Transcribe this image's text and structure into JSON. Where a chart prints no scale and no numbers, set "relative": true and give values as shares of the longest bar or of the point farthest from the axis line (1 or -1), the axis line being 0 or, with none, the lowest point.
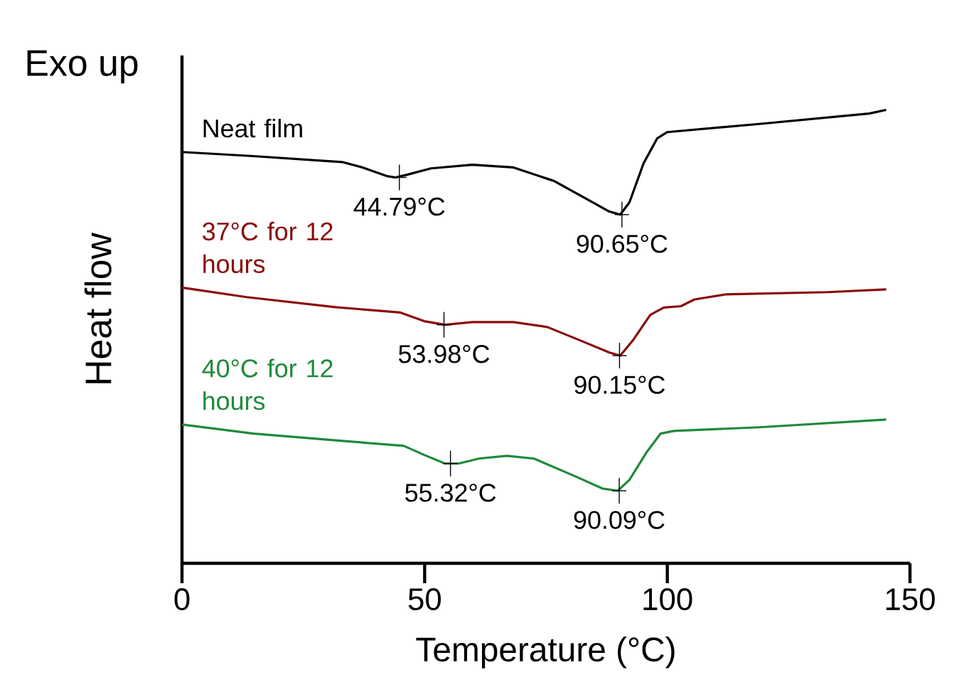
{
  "chart_data": {
    "type": "line",
    "relative": true,
    "xlabel": "Temperature (°C)",
    "ylabel": "Heat flow",
    "xlim": [
      0,
      150
    ],
    "xticks": [
      0,
      50,
      100,
      150
    ],
    "grid": false,
    "legend": false,
    "marker": "none",
    "line_style": "solid",
    "series": [
      {
        "name": "Neat film",
        "color": "#000000",
        "x": [
          0,
          14.7,
          33,
          37.2,
          42.2,
          44.0,
          46.4,
          51.3,
          59.8,
          68.3,
          76.7,
          83.8,
          88.0,
          90.3,
          92.2,
          95.1,
          97.9,
          100,
          119,
          141.6,
          145.1
        ],
        "values": [
          0.907,
          0.898,
          0.885,
          0.873,
          0.854,
          0.851,
          0.857,
          0.871,
          0.879,
          0.873,
          0.843,
          0.801,
          0.776,
          0.769,
          0.796,
          0.882,
          0.937,
          0.951,
          0.969,
          0.992,
          1.0
        ]
      },
      {
        "name": "37°C for 12 hours",
        "color": "#8b0a0a",
        "x": [
          0,
          13.3,
          31.6,
          45,
          49.9,
          54.2,
          59.8,
          68.3,
          75.3,
          82.4,
          88,
          90.3,
          93,
          96.5,
          99.3,
          102.8,
          105.6,
          112,
          133.1,
          145.1
        ],
        "values": [
          0.608,
          0.587,
          0.565,
          0.553,
          0.534,
          0.526,
          0.532,
          0.532,
          0.521,
          0.49,
          0.465,
          0.458,
          0.493,
          0.548,
          0.564,
          0.567,
          0.582,
          0.593,
          0.598,
          0.604
        ]
      },
      {
        "name": "40°C for 12 hours",
        "color": "#1e8a3a",
        "x": [
          0,
          14.7,
          33,
          45.7,
          49.9,
          54.2,
          57,
          61.2,
          66.9,
          72.5,
          81,
          86.6,
          89.8,
          92.2,
          95.8,
          98.6,
          101.4,
          119,
          145.1
        ],
        "values": [
          0.306,
          0.286,
          0.27,
          0.259,
          0.239,
          0.22,
          0.22,
          0.231,
          0.237,
          0.231,
          0.192,
          0.165,
          0.16,
          0.184,
          0.246,
          0.286,
          0.292,
          0.3,
          0.317
        ]
      }
    ],
    "annotations": [
      "Exo up",
      {
        "text": "44.79°C",
        "x": 44.79,
        "y": 0.851
      },
      {
        "text": "90.65°C",
        "x": 90.65,
        "y": 0.769
      },
      {
        "text": "53.98°C",
        "x": 53.98,
        "y": 0.526
      },
      {
        "text": "90.15°C",
        "x": 90.15,
        "y": 0.458
      },
      {
        "text": "55.32°C",
        "x": 55.32,
        "y": 0.22
      },
      {
        "text": "90.09°C",
        "x": 90.09,
        "y": 0.16
      }
    ]
  }
}
